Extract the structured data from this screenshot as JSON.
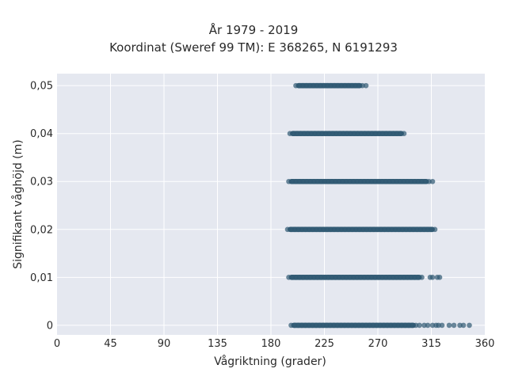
{
  "title_lines": [
    "År 1979 - 2019",
    "Koordinat (Sweref 99 TM): E 368265, N 6191293"
  ],
  "chart_data": {
    "type": "scatter",
    "title": "År 1979 - 2019\nKoordinat (Sweref 99 TM): E 368265, N 6191293",
    "xlabel": "Vågriktning (grader)",
    "ylabel": "Signifikant våghöjd (m)",
    "xlim": [
      0,
      360
    ],
    "ylim": [
      -0.002,
      0.0525
    ],
    "xticks": [
      0,
      45,
      90,
      135,
      180,
      225,
      270,
      315,
      360
    ],
    "xtick_labels": [
      "0",
      "45",
      "90",
      "135",
      "180",
      "225",
      "270",
      "315",
      "360"
    ],
    "yticks": [
      0,
      0.01,
      0.02,
      0.03,
      0.04,
      0.05
    ],
    "ytick_labels": [
      "0",
      "0,01",
      "0,02",
      "0,03",
      "0,04",
      "0,05"
    ],
    "grid": true,
    "colors": {
      "background": "#e5e8f0",
      "grid": "#ffffff",
      "marker": "#2f5872"
    },
    "bands": [
      {
        "y": 0.05,
        "dense_from": 201,
        "dense_to": 257,
        "outliers": [
          260
        ]
      },
      {
        "y": 0.04,
        "dense_from": 196,
        "dense_to": 292,
        "outliers": []
      },
      {
        "y": 0.03,
        "dense_from": 195,
        "dense_to": 313,
        "outliers": [
          316
        ]
      },
      {
        "y": 0.02,
        "dense_from": 194,
        "dense_to": 318,
        "outliers": []
      },
      {
        "y": 0.01,
        "dense_from": 195,
        "dense_to": 307,
        "outliers": [
          314,
          316,
          320,
          322
        ]
      },
      {
        "y": 0.0,
        "dense_from": 197,
        "dense_to": 302,
        "outliers": [
          305,
          309,
          312,
          316,
          319,
          321,
          324,
          330,
          334,
          339,
          342,
          347
        ]
      }
    ]
  }
}
